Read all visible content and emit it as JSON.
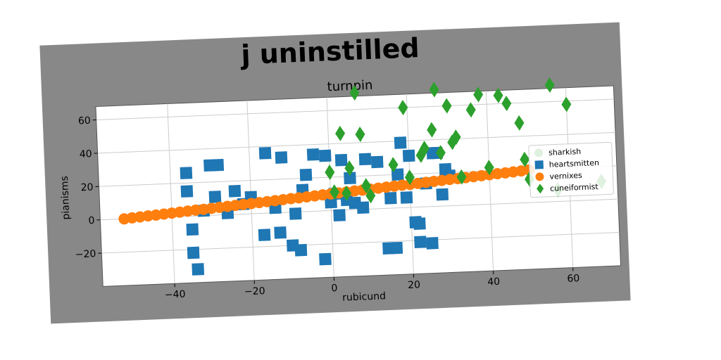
{
  "colors": {
    "page_background": "#ffffff",
    "frame": "#888888",
    "plot_background": "#ffffff",
    "grid": "#cccccc",
    "sharkish": "#dff0df",
    "heartsmitten": "#1f77b4",
    "vernixes": "#ff7f0e",
    "cuneiformist": "#2ca02c"
  },
  "chart_data": {
    "type": "scatter",
    "title": "j uninstilled",
    "subtitle": "turnpin",
    "xlabel": "rubicund",
    "ylabel": "pianisms",
    "xlim": [
      -58,
      72
    ],
    "ylim": [
      -40,
      68
    ],
    "xticks": [
      -40,
      -20,
      0,
      20,
      40,
      60
    ],
    "yticks": [
      -20,
      0,
      20,
      40,
      60
    ],
    "xtick_labels": [
      "−40",
      "−20",
      "0",
      "20",
      "40",
      "60"
    ],
    "ytick_labels": [
      "−20",
      "0",
      "20",
      "40",
      "60"
    ],
    "grid": true,
    "legend_position": "right",
    "series": [
      {
        "name": "sharkish",
        "marker": "circle",
        "x": [],
        "y": []
      },
      {
        "name": "heartsmitten",
        "marker": "square",
        "x": [
          -36,
          -36,
          -35,
          -35,
          -34,
          -32,
          -30,
          -29,
          -28,
          -26,
          -24,
          -22,
          -20,
          -17,
          -16,
          -14,
          -13,
          -12,
          -10,
          -9,
          -8,
          -7,
          -6,
          -4,
          -2,
          -1,
          0,
          1,
          2,
          3,
          4,
          5,
          6,
          8,
          9,
          12,
          14,
          15,
          16,
          17,
          18,
          19,
          20,
          21,
          22,
          22,
          24,
          25,
          26,
          27,
          28,
          29,
          30
        ],
        "y": [
          26,
          15,
          -8,
          -22,
          -32,
          3,
          30,
          11,
          30,
          1,
          14,
          6,
          10,
          -13,
          36,
          3,
          -12,
          33,
          -20,
          -1,
          -23,
          13,
          22,
          34,
          -29,
          33,
          5,
          10,
          -3,
          30,
          6,
          19,
          4,
          1,
          30,
          28,
          -24,
          6,
          -24,
          20,
          39,
          6,
          31,
          -9,
          -10,
          -21,
          14,
          -22,
          32,
          32,
          7,
          22,
          18
        ]
      },
      {
        "name": "vernixes",
        "marker": "circle",
        "x": [
          -52,
          -50,
          -48,
          -46,
          -44,
          -42,
          -40,
          -38,
          -36,
          -34,
          -32,
          -30,
          -28,
          -26,
          -24,
          -22,
          -20,
          -18,
          -16,
          -14,
          -12,
          -10,
          -8,
          -6,
          -4,
          -2,
          0,
          2,
          4,
          6,
          8,
          10,
          12,
          14,
          16,
          18,
          20,
          22,
          24,
          26,
          28,
          30,
          32,
          34,
          36,
          38,
          40,
          42,
          44,
          46,
          48,
          50
        ],
        "y": [
          0.0,
          0.4,
          0.8,
          1.2,
          1.5,
          1.9,
          2.3,
          2.7,
          3.1,
          3.5,
          3.8,
          4.2,
          4.6,
          5.0,
          5.4,
          5.8,
          6.1,
          6.5,
          6.9,
          7.3,
          7.7,
          8.1,
          8.4,
          8.8,
          9.2,
          9.6,
          10.0,
          10.4,
          10.8,
          11.2,
          11.5,
          11.9,
          12.3,
          12.7,
          13.1,
          13.5,
          13.8,
          14.2,
          14.6,
          15.0,
          15.4,
          15.8,
          16.1,
          16.5,
          16.9,
          17.3,
          17.7,
          18.1,
          18.4,
          18.8,
          19.2,
          19.6
        ]
      },
      {
        "name": "cuneiformist",
        "marker": "diamond",
        "x": [
          0,
          1,
          3,
          4,
          5,
          7,
          8,
          9,
          10,
          16,
          19,
          20,
          23,
          24,
          26,
          27,
          28,
          30,
          31,
          32,
          33,
          36,
          38,
          40,
          43,
          45,
          48,
          49,
          50,
          56,
          57,
          60,
          68
        ],
        "y": [
          23,
          11,
          46,
          10,
          25,
          70,
          45,
          14,
          8,
          26,
          60,
          18,
          31,
          35,
          46,
          70,
          32,
          60,
          38,
          41,
          17,
          57,
          66,
          22,
          65,
          60,
          48,
          26,
          14,
          70,
          7,
          58,
          11
        ]
      }
    ]
  }
}
